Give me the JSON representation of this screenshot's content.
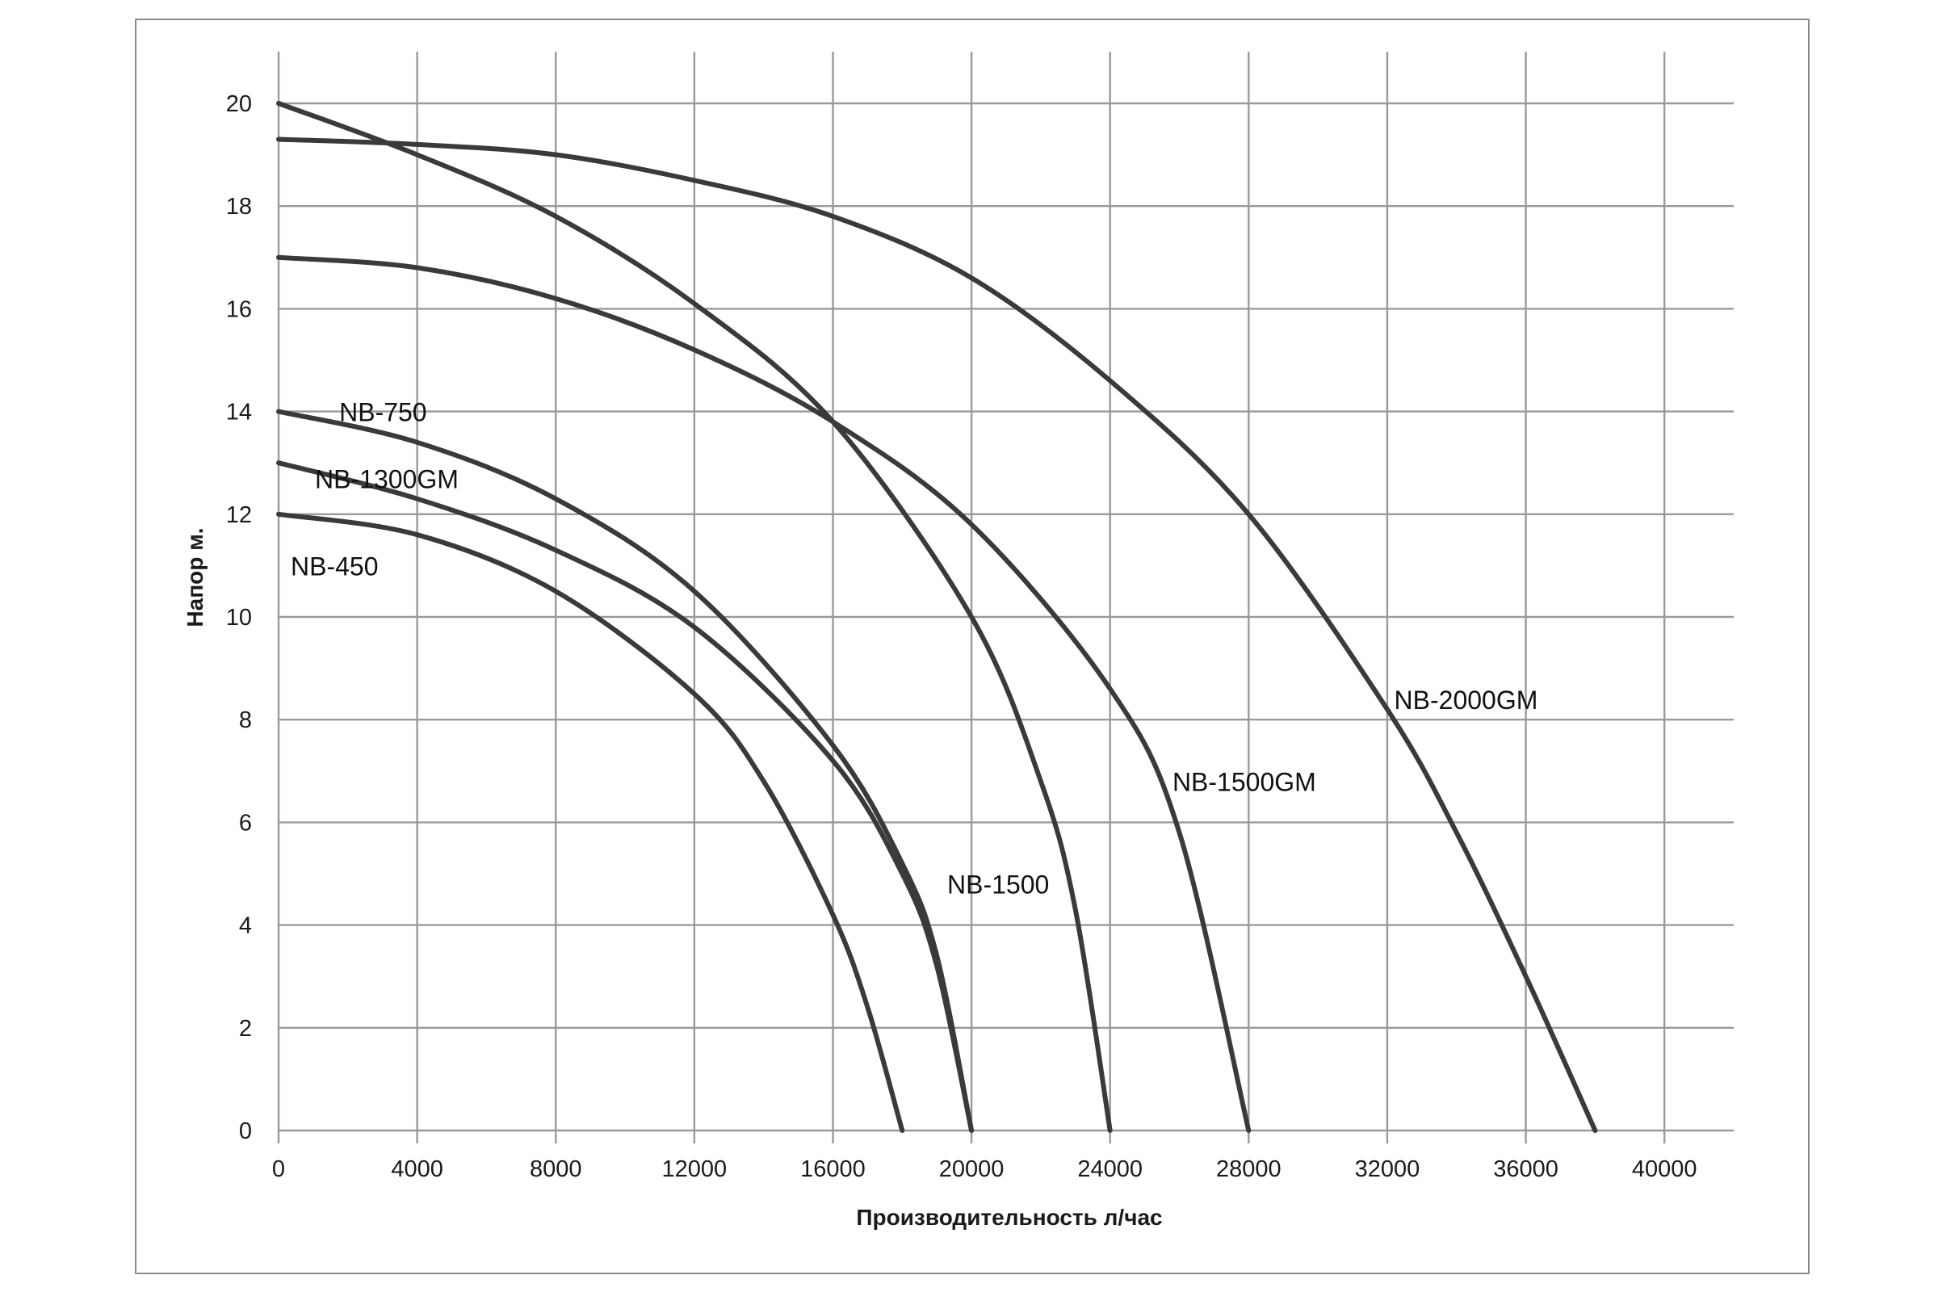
{
  "chart_data": {
    "type": "line",
    "title": "",
    "xlabel": "Производительность  л/час",
    "ylabel": "Напор м.",
    "xlim": [
      0,
      42000
    ],
    "ylim": [
      0,
      20
    ],
    "x_ticks": [
      "0",
      "4000",
      "8000",
      "12000",
      "16000",
      "20000",
      "24000",
      "28000",
      "32000",
      "36000",
      "40000"
    ],
    "y_ticks": [
      "0",
      "2",
      "4",
      "6",
      "8",
      "10",
      "12",
      "14",
      "16",
      "18",
      "20"
    ],
    "grid": true,
    "legend": "none",
    "series": [
      {
        "name": "NB-450",
        "x": [
          0,
          4000,
          8000,
          12000,
          14000,
          16000,
          17000,
          18000
        ],
        "y": [
          12.0,
          11.6,
          10.5,
          8.5,
          6.8,
          4.2,
          2.4,
          0
        ]
      },
      {
        "name": "NB-1300GM",
        "x": [
          0,
          4000,
          8000,
          12000,
          16000,
          18000,
          19000,
          20000
        ],
        "y": [
          13.0,
          12.3,
          11.3,
          9.8,
          7.2,
          5.0,
          3.2,
          0
        ]
      },
      {
        "name": "NB-750",
        "x": [
          0,
          4000,
          8000,
          12000,
          16000,
          18000,
          19000,
          20000
        ],
        "y": [
          14.0,
          13.4,
          12.3,
          10.5,
          7.5,
          5.2,
          3.4,
          0
        ]
      },
      {
        "name": "NB-1500",
        "x": [
          0,
          4000,
          8000,
          12000,
          16000,
          20000,
          22000,
          23000,
          24000
        ],
        "y": [
          20.0,
          19.0,
          17.8,
          16.1,
          13.8,
          10.0,
          6.8,
          4.3,
          0
        ]
      },
      {
        "name": "NB-1500GM",
        "x": [
          0,
          4000,
          8000,
          12000,
          16000,
          20000,
          24000,
          26000,
          28000
        ],
        "y": [
          17.0,
          16.8,
          16.2,
          15.2,
          13.8,
          11.8,
          8.6,
          5.8,
          0
        ]
      },
      {
        "name": "NB-2000GM",
        "x": [
          0,
          4000,
          8000,
          12000,
          16000,
          20000,
          24000,
          28000,
          32000,
          34000,
          36000,
          38000
        ],
        "y": [
          19.3,
          19.2,
          19.0,
          18.5,
          17.8,
          16.6,
          14.6,
          12.0,
          8.2,
          5.8,
          3.0,
          0
        ]
      }
    ],
    "annotations": [
      {
        "text": "NB-450",
        "series": "NB-450"
      },
      {
        "text": "NB-1300GM",
        "series": "NB-1300GM"
      },
      {
        "text": "NB-750",
        "series": "NB-750"
      },
      {
        "text": "NB-1500",
        "series": "NB-1500"
      },
      {
        "text": "NB-1500GM",
        "series": "NB-1500GM"
      },
      {
        "text": "NB-2000GM",
        "series": "NB-2000GM"
      }
    ]
  }
}
